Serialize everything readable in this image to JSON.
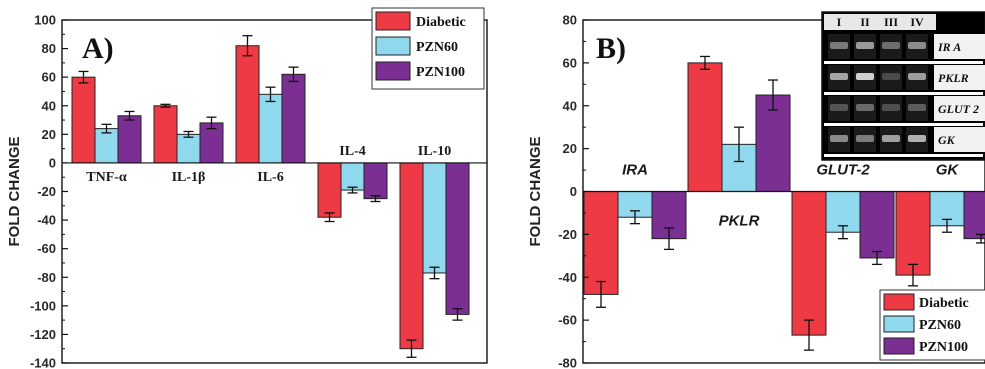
{
  "chart_data": [
    {
      "type": "bar",
      "panel_label": "A)",
      "ylabel": "FOLD CHANGE",
      "ylim": [
        -140,
        100
      ],
      "yticks": [
        -140,
        -120,
        -100,
        -80,
        -60,
        -40,
        -20,
        0,
        20,
        40,
        60,
        80,
        100
      ],
      "categories": [
        "TNF-α",
        "IL-1β",
        "IL-6",
        "IL-4",
        "IL-10"
      ],
      "series": [
        {
          "name": "Diabetic",
          "color": "#ee3a45",
          "values": [
            60,
            40,
            82,
            -38,
            -130
          ],
          "errors": [
            4,
            1,
            7,
            3,
            6
          ]
        },
        {
          "name": "PZN60",
          "color": "#8fd8ee",
          "values": [
            24,
            20,
            48,
            -19,
            -77
          ],
          "errors": [
            3,
            2,
            5,
            2,
            4
          ]
        },
        {
          "name": "PZN100",
          "color": "#7b2f93",
          "values": [
            33,
            28,
            62,
            -25,
            -106
          ],
          "errors": [
            3,
            4,
            5,
            2,
            4
          ]
        }
      ],
      "legend_position": "top-right",
      "grid": false
    },
    {
      "type": "bar",
      "panel_label": "B)",
      "ylabel": "FOLD CHANGE",
      "ylim": [
        -80,
        80
      ],
      "yticks": [
        -80,
        -60,
        -40,
        -20,
        0,
        20,
        40,
        60,
        80
      ],
      "categories": [
        "IRA",
        "PKLR",
        "GLUT-2",
        "GK"
      ],
      "series": [
        {
          "name": "Diabetic",
          "color": "#ee3a45",
          "values": [
            -48,
            60,
            -67,
            -39
          ],
          "errors": [
            6,
            3,
            7,
            5
          ]
        },
        {
          "name": "PZN60",
          "color": "#8fd8ee",
          "values": [
            -12,
            22,
            -19,
            -16
          ],
          "errors": [
            3,
            8,
            3,
            3
          ]
        },
        {
          "name": "PZN100",
          "color": "#7b2f93",
          "values": [
            -22,
            45,
            -31,
            -22
          ],
          "errors": [
            5,
            7,
            3,
            2
          ]
        }
      ],
      "legend_position": "bottom-right",
      "grid": false,
      "inset": {
        "lanes": [
          "I",
          "II",
          "III",
          "IV"
        ],
        "genes": [
          "IR A",
          "PKLR",
          "GLUT 2",
          "GK"
        ]
      }
    }
  ]
}
